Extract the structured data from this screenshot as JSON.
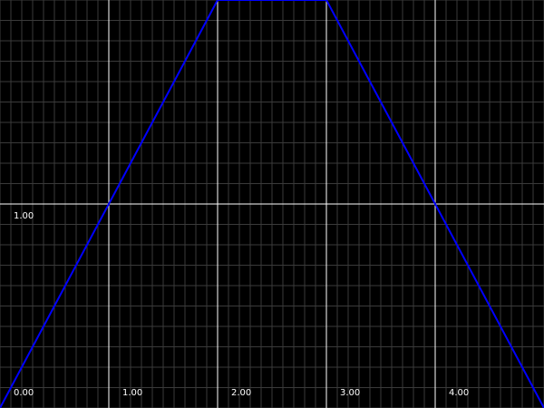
{
  "chart_data": {
    "type": "line",
    "title": "",
    "xlabel": "",
    "ylabel": "",
    "xlim": [
      0,
      5
    ],
    "ylim": [
      0,
      2
    ],
    "x_ticks": [
      0,
      1,
      2,
      3,
      4
    ],
    "x_tick_labels": [
      "0.00",
      "1.00",
      "2.00",
      "3.00",
      "4.00"
    ],
    "y_ticks": [
      1
    ],
    "y_tick_labels": [
      "1.00"
    ],
    "grid": true,
    "minor_grid_step": 0.1,
    "background_color": "#000000",
    "major_grid_color": "#ffffff",
    "minor_grid_color": "#3a3a3a",
    "series": [
      {
        "color": "#0000ff",
        "x": [
          0,
          2,
          3,
          5
        ],
        "y": [
          0,
          2,
          2,
          0
        ]
      }
    ]
  }
}
